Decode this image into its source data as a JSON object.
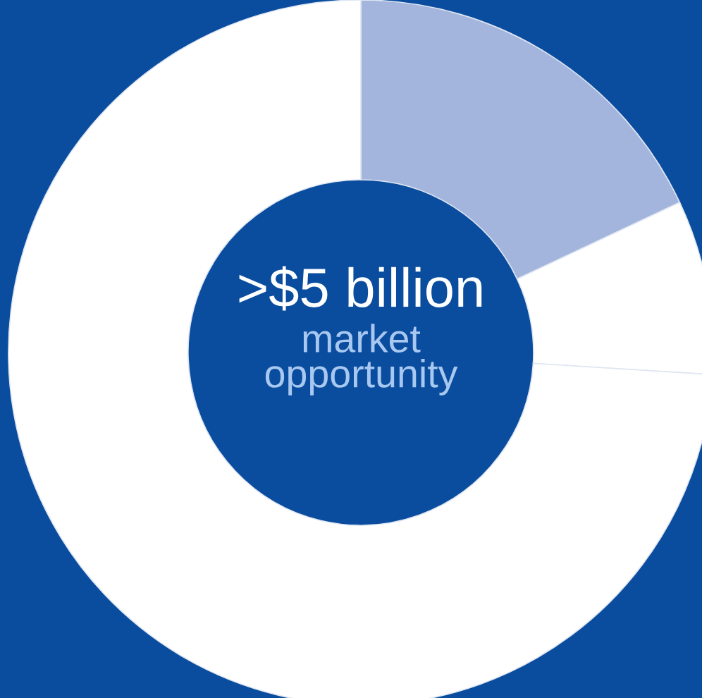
{
  "chart_data": {
    "type": "donut",
    "categories": [
      null,
      null,
      null
    ],
    "values": [
      18,
      8,
      74
    ],
    "colors": [
      "#a3b5dd",
      "#ffffff",
      "#ffffff"
    ],
    "annotations": [
      ">$5 billion",
      "market opportunity"
    ],
    "legend": false
  }
}
